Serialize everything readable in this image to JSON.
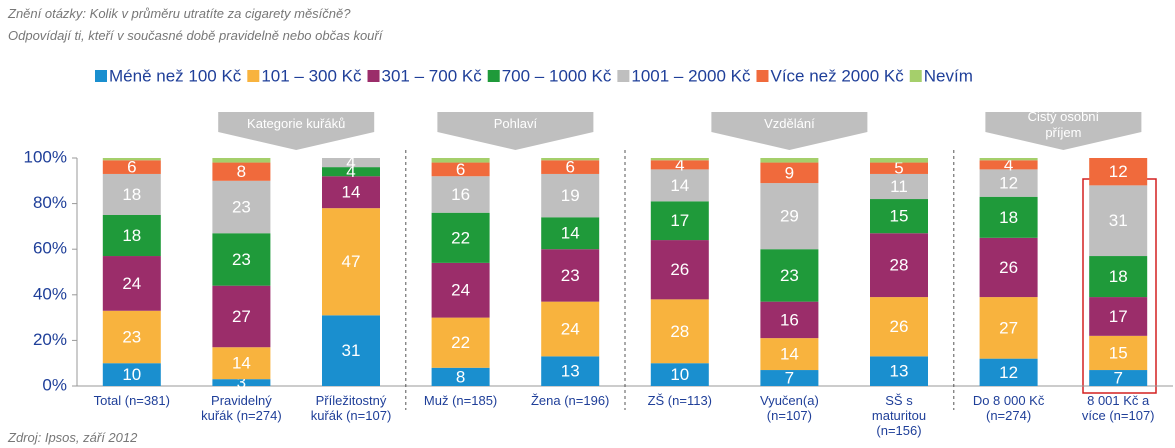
{
  "chart_data": {
    "type": "stacked_bar",
    "notes": [
      "Znění otázky: Kolik v průměru utratíte za cigarety měsíčně?",
      "Odpovídají ti, kteří v současné době pravidelně nebo občas kouří"
    ],
    "source": "Zdroj: Ipsos, září 2012",
    "groups": [
      "Kategorie kuřáků",
      "Pohlaví",
      "Vzdělání",
      "Čistý osobní\npříjem"
    ],
    "categories": [
      "Total (n=381)",
      "Pravidelný\nkuřák (n=274)",
      "Příležitostný\nkuřák (n=107)",
      "Muž (n=185)",
      "Žena (n=196)",
      "ZŠ (n=113)",
      "Vyučen(a)\n(n=107)",
      "SŠ s\nmaturitou\n(n=156)",
      "Do 8 000 Kč\n(n=274)",
      "8 001 Kč a\nvíce (n=107)"
    ],
    "series": [
      {
        "name": "Méně než 100 Kč",
        "color": "#1a8fcf",
        "values": [
          10,
          3,
          31,
          8,
          13,
          10,
          7,
          13,
          12,
          7
        ]
      },
      {
        "name": "101 – 300 Kč",
        "color": "#f8b33e",
        "values": [
          23,
          14,
          47,
          22,
          24,
          28,
          14,
          26,
          27,
          15
        ]
      },
      {
        "name": "301 – 700 Kč",
        "color": "#9b2d6a",
        "values": [
          24,
          27,
          14,
          24,
          23,
          26,
          16,
          28,
          26,
          17
        ]
      },
      {
        "name": "700 – 1000 Kč",
        "color": "#1f9a3a",
        "values": [
          18,
          23,
          4,
          22,
          14,
          17,
          23,
          15,
          18,
          18
        ]
      },
      {
        "name": "1001 – 2000 Kč",
        "color": "#bfbfbf",
        "values": [
          18,
          23,
          4,
          16,
          19,
          14,
          29,
          11,
          12,
          31
        ]
      },
      {
        "name": "Více než 2000 Kč",
        "color": "#f06a3c",
        "values": [
          6,
          8,
          0,
          6,
          6,
          4,
          9,
          5,
          4,
          12
        ]
      },
      {
        "name": "Nevím",
        "color": "#a5cf6b",
        "values": [
          1,
          2,
          0,
          2,
          1,
          1,
          2,
          2,
          1,
          0
        ],
        "show_labels": false
      }
    ],
    "ylim": [
      0,
      100
    ],
    "yticks": [
      {
        "value": 0,
        "label": "0%"
      },
      {
        "value": 20,
        "label": "20%"
      },
      {
        "value": 40,
        "label": "40%"
      },
      {
        "value": 60,
        "label": "60%"
      },
      {
        "value": 80,
        "label": "80%"
      },
      {
        "value": 100,
        "label": "100%"
      }
    ],
    "grid": false
  }
}
